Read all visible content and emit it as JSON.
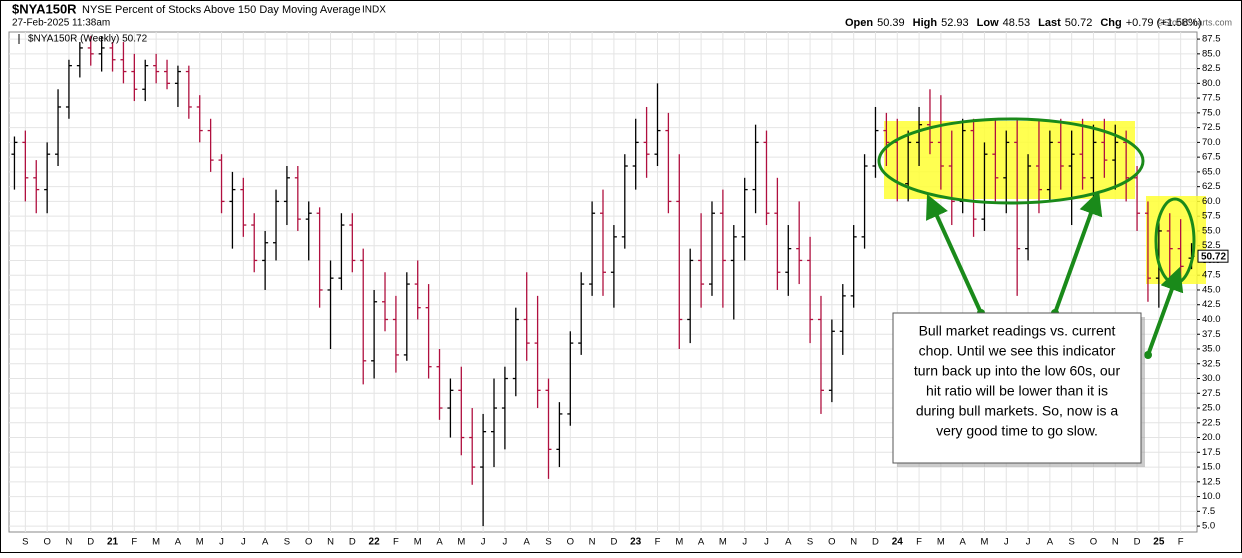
{
  "chart_data": {
    "type": "ohlc",
    "symbol": "$NYA150R",
    "title": "NYSE Percent of Stocks Above 150 Day Moving Average",
    "exchange": "INDX",
    "timestamp": "27-Feb-2025 11:38am",
    "copyright": "©StockCharts.com",
    "legend": "$NYA150R (Weekly) 50.72",
    "quote": [
      {
        "label": "Open",
        "value": 50.39
      },
      {
        "label": "High",
        "value": 52.93
      },
      {
        "label": "Low",
        "value": 48.53
      },
      {
        "label": "Last",
        "value": 50.72
      },
      {
        "label": "Chg",
        "value": "+0.79 (+1.58%)"
      }
    ],
    "annotation": [
      "Bull market readings vs. current",
      "chop. Until we see this indicator",
      "turn back up into the low 60s, our",
      "hit ratio will be lower than it is",
      "during bull markets. So, now is a",
      "very good time to go slow."
    ],
    "up_color": "#000000",
    "down_color": "#b0103f",
    "grid": true,
    "ylim": [
      4,
      88.7
    ],
    "yticks": [
      {
        "value": 5,
        "label": "5.0"
      },
      7.5,
      {
        "value": 10,
        "label": "10.0"
      },
      12.5,
      {
        "value": 15,
        "label": "15.0"
      },
      17.5,
      {
        "value": 20,
        "label": "20.0"
      },
      22.5,
      {
        "value": 25,
        "label": "25.0"
      },
      27.5,
      {
        "value": 30,
        "label": "30.0"
      },
      32.5,
      {
        "value": 35,
        "label": "35.0"
      },
      37.5,
      {
        "value": 40,
        "label": "40.0"
      },
      42.5,
      {
        "value": 45,
        "label": "45.0"
      },
      47.5,
      {
        "value": 50,
        "label": "50.0"
      },
      52.5,
      {
        "value": 55,
        "label": "55.0"
      },
      57.5,
      {
        "value": 60,
        "label": "60.0"
      },
      62.5,
      {
        "value": 65,
        "label": "65.0"
      },
      67.5,
      {
        "value": 70,
        "label": "70.0"
      },
      72.5,
      {
        "value": 75,
        "label": "75.0"
      },
      77.5,
      {
        "value": 80,
        "label": "80.0"
      },
      82.5,
      {
        "value": 85,
        "label": "85.0"
      },
      87.5
    ],
    "categories": [
      null,
      "S",
      null,
      "O",
      null,
      "N",
      null,
      "D",
      null,
      "21",
      null,
      "F",
      null,
      "M",
      null,
      "A",
      null,
      "M",
      null,
      "J",
      null,
      "J",
      null,
      "A",
      null,
      "S",
      null,
      "O",
      null,
      "N",
      null,
      "D",
      null,
      "22",
      null,
      "F",
      null,
      "M",
      null,
      "A",
      null,
      "M",
      null,
      "J",
      null,
      "J",
      null,
      "A",
      null,
      "S",
      null,
      "O",
      null,
      "N",
      null,
      "D",
      null,
      "23",
      null,
      "F",
      null,
      "M",
      null,
      "A",
      null,
      "M",
      null,
      "J",
      null,
      "J",
      null,
      "A",
      null,
      "S",
      null,
      "O",
      null,
      "N",
      null,
      "D",
      null,
      "24",
      null,
      "F",
      null,
      "M",
      null,
      "A",
      null,
      "M",
      null,
      "J",
      null,
      "J",
      null,
      "A",
      null,
      "S",
      null,
      "O",
      null,
      "N",
      null,
      "D",
      null,
      "25",
      null,
      "F",
      null
    ],
    "open": [
      68,
      70,
      64,
      62,
      68,
      76,
      83,
      86,
      85,
      86,
      84,
      82,
      79,
      83,
      82,
      80,
      82,
      76,
      72,
      67,
      60,
      62,
      56,
      50,
      53,
      60,
      64,
      57,
      58,
      45,
      47,
      56,
      50,
      33,
      43,
      40,
      34,
      46,
      42,
      32,
      25,
      28,
      20,
      15,
      21,
      25,
      30,
      40,
      36,
      28,
      18,
      24,
      36,
      46,
      58,
      48,
      54,
      66,
      70,
      68,
      72,
      60,
      40,
      50,
      46,
      58,
      50,
      54,
      62,
      70,
      58,
      48,
      52,
      50,
      40,
      28,
      38,
      44,
      54,
      66,
      72,
      70,
      63,
      70,
      73,
      70,
      66,
      60,
      72,
      57,
      68,
      64,
      70,
      52,
      66,
      62,
      70,
      66,
      68,
      64,
      70,
      67,
      70,
      64,
      58,
      47,
      55,
      52,
      50.39
    ],
    "high": [
      71,
      72,
      67,
      70,
      79,
      84,
      87,
      88,
      88,
      87,
      87,
      85,
      84,
      85,
      84,
      83,
      83,
      78,
      74,
      68,
      65,
      64,
      58,
      55,
      62,
      66,
      66,
      60,
      59,
      50,
      58,
      58,
      52,
      45,
      48,
      44,
      48,
      50,
      46,
      35,
      30,
      32,
      25,
      24,
      30,
      32,
      42,
      48,
      44,
      30,
      26,
      38,
      48,
      60,
      62,
      56,
      68,
      74,
      76,
      80,
      75,
      68,
      52,
      58,
      60,
      62,
      56,
      64,
      73,
      72,
      64,
      56,
      60,
      54,
      44,
      40,
      46,
      56,
      68,
      76,
      75,
      74,
      72,
      76,
      79,
      78,
      72,
      74,
      74,
      70,
      74,
      72,
      74,
      68,
      74,
      72,
      74,
      72,
      74,
      73,
      74,
      73,
      72,
      66,
      60,
      57,
      58,
      57,
      52.93
    ],
    "low": [
      62,
      60,
      58,
      58,
      66,
      74,
      81,
      83,
      82,
      82,
      80,
      77,
      77,
      80,
      79,
      76,
      74,
      70,
      65,
      58,
      52,
      54,
      48,
      45,
      50,
      56,
      55,
      50,
      42,
      35,
      45,
      48,
      29,
      30,
      38,
      31,
      33,
      40,
      30,
      23,
      20,
      17,
      12,
      5,
      15,
      18,
      27,
      33,
      25,
      13,
      15,
      22,
      34,
      44,
      44,
      42,
      52,
      62,
      64,
      66,
      58,
      35,
      36,
      42,
      44,
      42,
      40,
      50,
      58,
      56,
      45,
      44,
      46,
      36,
      24,
      26,
      34,
      42,
      52,
      64,
      66,
      60,
      60,
      66,
      68,
      62,
      56,
      58,
      54,
      55,
      60,
      58,
      44,
      50,
      58,
      60,
      62,
      56,
      62,
      60,
      64,
      62,
      60,
      55,
      43,
      42,
      46,
      47,
      48.53
    ],
    "close": [
      70,
      64,
      62,
      68,
      76,
      83,
      86,
      85,
      86,
      84,
      82,
      79,
      83,
      82,
      80,
      82,
      76,
      72,
      67,
      60,
      62,
      56,
      50,
      53,
      60,
      64,
      57,
      58,
      45,
      47,
      56,
      50,
      33,
      43,
      40,
      34,
      46,
      42,
      32,
      25,
      28,
      20,
      15,
      21,
      25,
      30,
      40,
      36,
      28,
      18,
      24,
      36,
      46,
      58,
      48,
      54,
      66,
      70,
      68,
      72,
      60,
      40,
      50,
      46,
      58,
      50,
      54,
      62,
      70,
      58,
      48,
      52,
      50,
      40,
      28,
      38,
      44,
      54,
      66,
      72,
      70,
      63,
      70,
      73,
      70,
      66,
      60,
      72,
      57,
      68,
      64,
      70,
      52,
      66,
      62,
      70,
      66,
      68,
      64,
      70,
      67,
      70,
      64,
      58,
      47,
      55,
      52,
      49,
      50.72
    ]
  }
}
